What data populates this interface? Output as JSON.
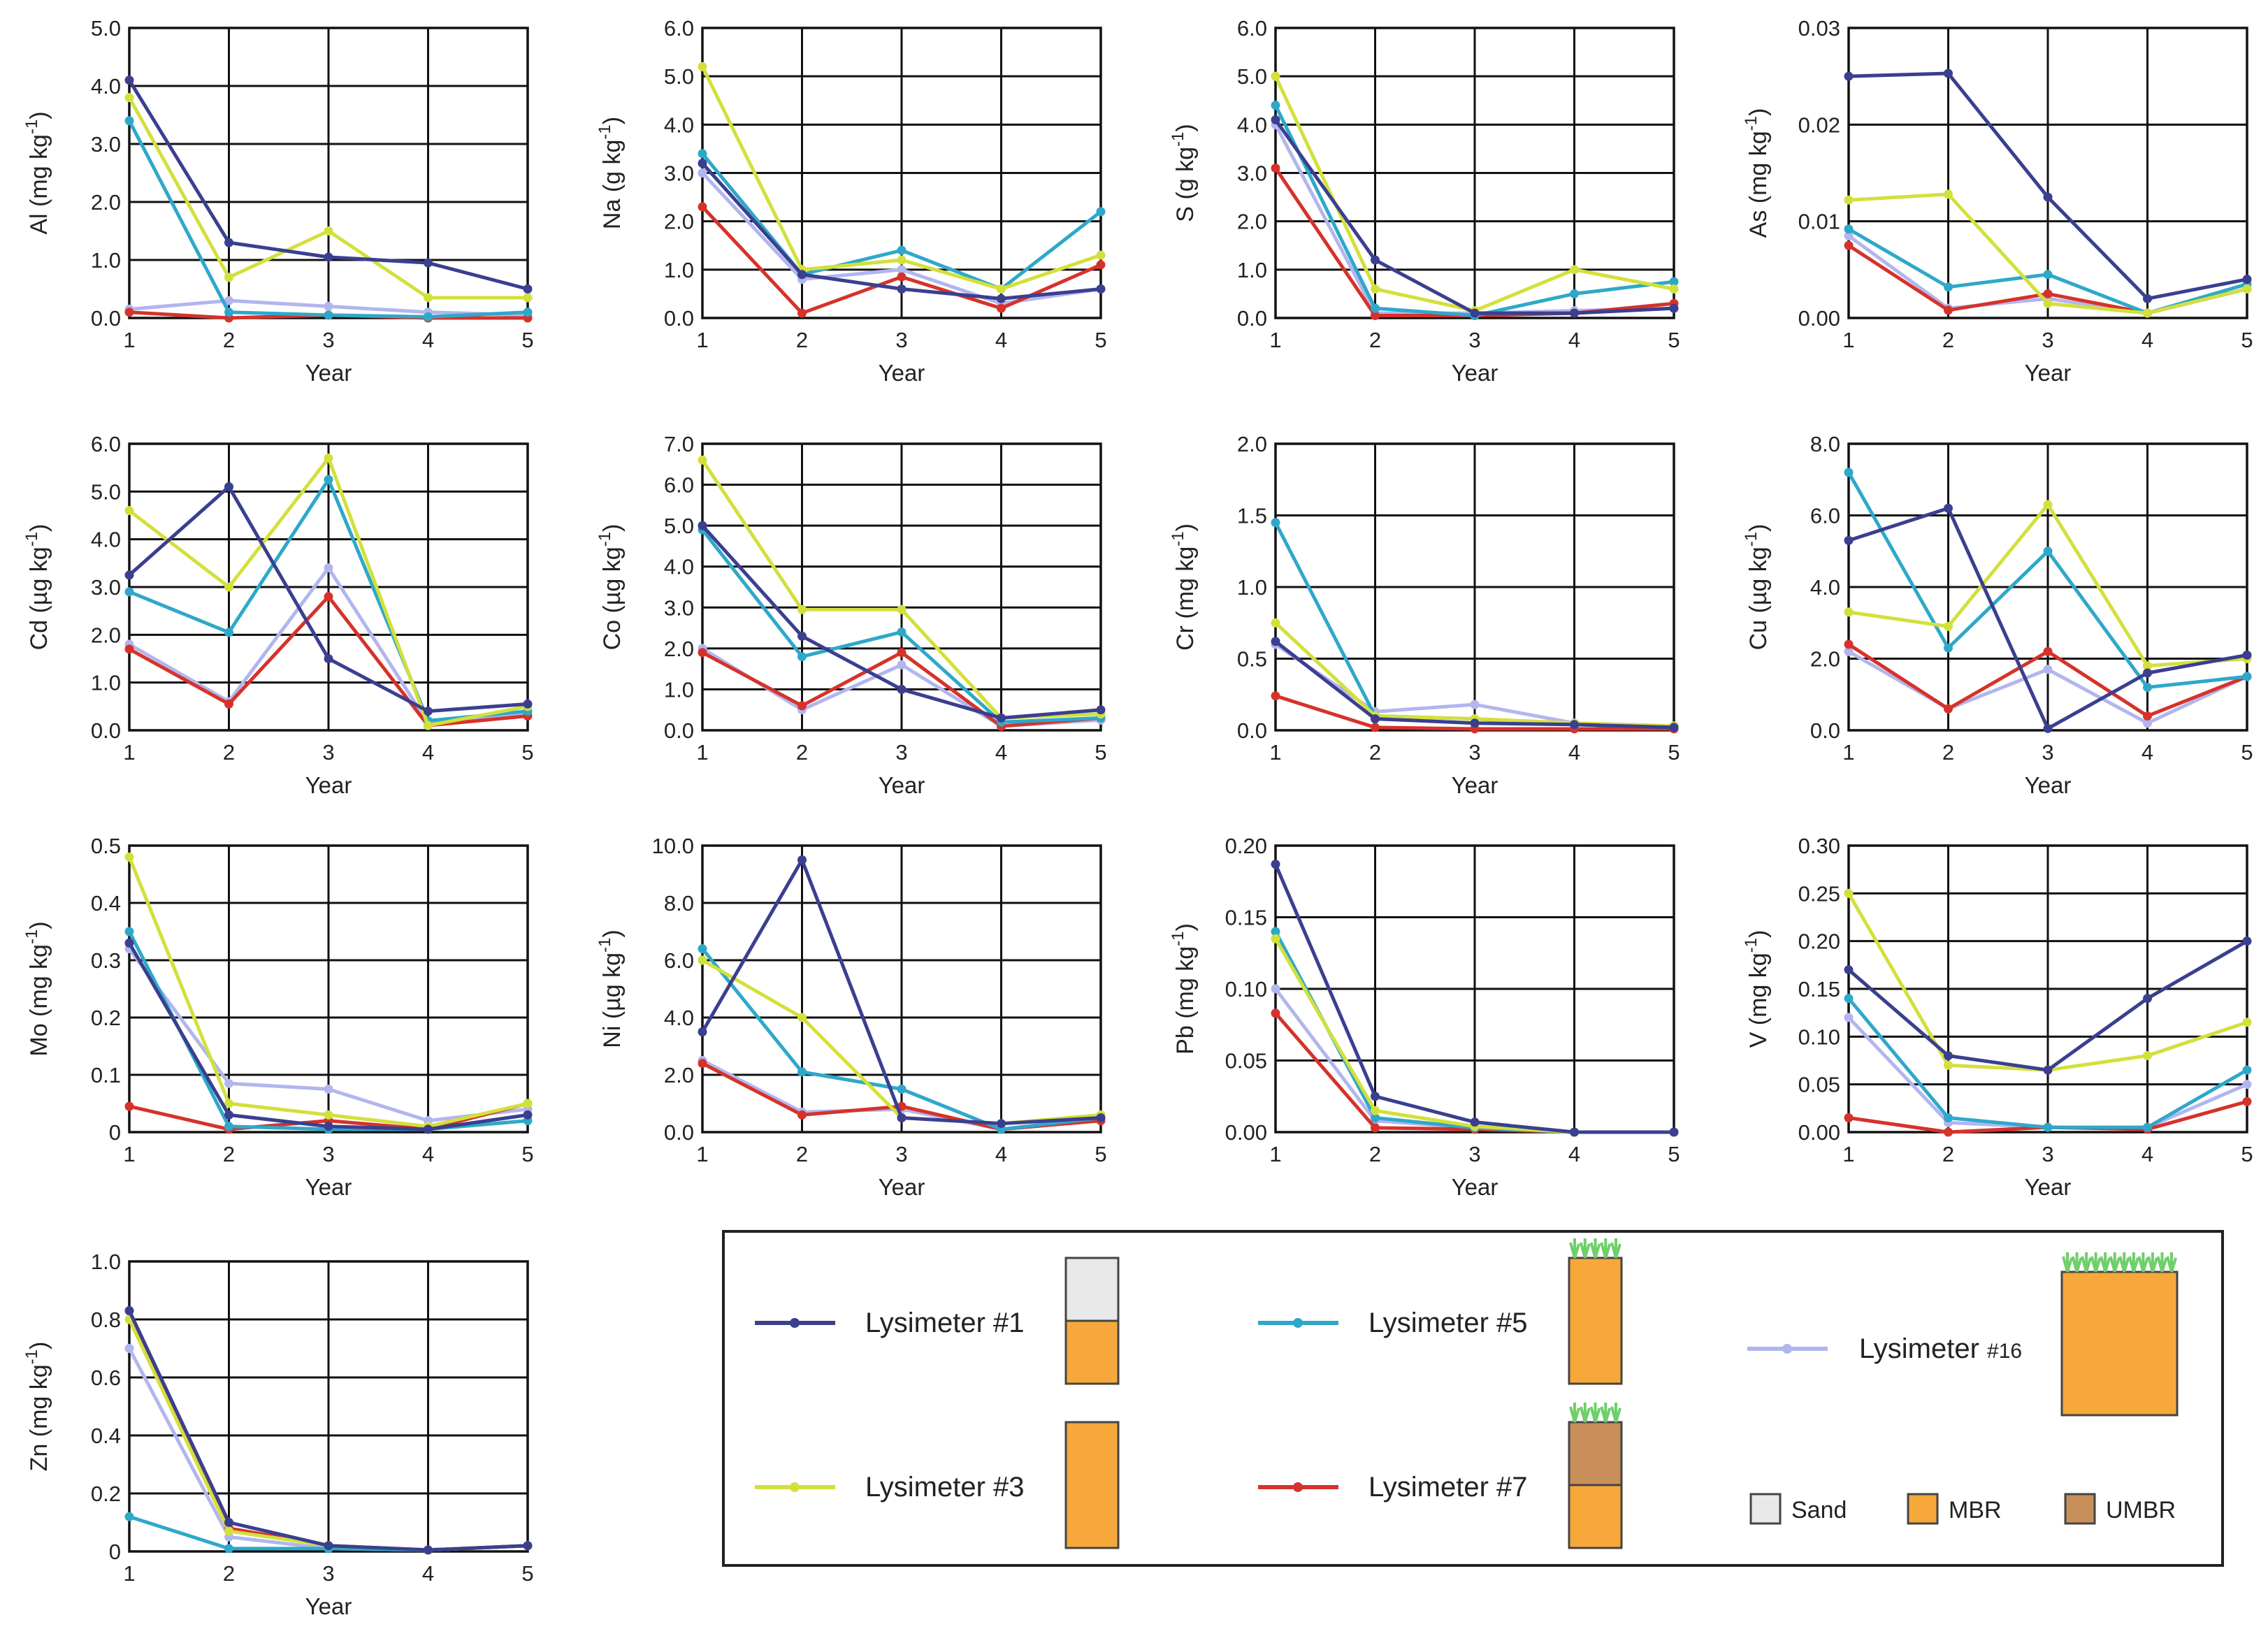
{
  "colors": {
    "lys1": "#3a3f8f",
    "lys3": "#d3e03c",
    "lys5": "#2ea8c9",
    "lys7": "#d6322b",
    "lys16": "#b2b6ee",
    "sand": "#e8e8e8",
    "mbr": "#f7a83a",
    "umbr": "#c98f5a",
    "plant": "#6fcf6a"
  },
  "series_order": [
    "lys1",
    "lys3",
    "lys5",
    "lys7",
    "lys16"
  ],
  "chart_data": [
    {
      "type": "line",
      "ylabel_main": "Al",
      "ylabel_unit": "(mg kg",
      "ylabel_sup": "-1",
      "ylabel_close": ")",
      "xlabel": "Year",
      "x": [
        1,
        2,
        3,
        4,
        5
      ],
      "ylim": [
        0,
        5
      ],
      "yticks": [
        "0.0",
        "1.0",
        "2.0",
        "3.0",
        "4.0",
        "5.0"
      ],
      "xticks": [
        "1",
        "2",
        "3",
        "4",
        "5"
      ],
      "series": [
        {
          "key": "lys1",
          "values": [
            4.1,
            1.3,
            1.05,
            0.95,
            0.5
          ]
        },
        {
          "key": "lys3",
          "values": [
            3.8,
            0.7,
            1.5,
            0.35,
            0.35
          ]
        },
        {
          "key": "lys5",
          "values": [
            3.4,
            0.1,
            0.05,
            0.02,
            0.1
          ]
        },
        {
          "key": "lys7",
          "values": [
            0.1,
            0.0,
            0.05,
            0.0,
            0.0
          ]
        },
        {
          "key": "lys16",
          "values": [
            0.15,
            0.3,
            0.2,
            0.1,
            0.05
          ]
        }
      ]
    },
    {
      "type": "line",
      "ylabel_main": "Na",
      "ylabel_unit": "(g kg",
      "ylabel_sup": "-1",
      "ylabel_close": ")",
      "xlabel": "Year",
      "x": [
        1,
        2,
        3,
        4,
        5
      ],
      "ylim": [
        0,
        6
      ],
      "yticks": [
        "0.0",
        "1.0",
        "2.0",
        "3.0",
        "4.0",
        "5.0",
        "6.0"
      ],
      "xticks": [
        "1",
        "2",
        "3",
        "4",
        "5"
      ],
      "series": [
        {
          "key": "lys1",
          "values": [
            3.2,
            0.9,
            0.6,
            0.4,
            0.6
          ]
        },
        {
          "key": "lys3",
          "values": [
            5.2,
            1.0,
            1.2,
            0.6,
            1.3
          ]
        },
        {
          "key": "lys5",
          "values": [
            3.4,
            0.9,
            1.4,
            0.6,
            2.2
          ]
        },
        {
          "key": "lys7",
          "values": [
            2.3,
            0.1,
            0.85,
            0.2,
            1.1
          ]
        },
        {
          "key": "lys16",
          "values": [
            3.0,
            0.8,
            1.0,
            0.3,
            0.6
          ]
        }
      ]
    },
    {
      "type": "line",
      "ylabel_main": "S",
      "ylabel_unit": "(g kg",
      "ylabel_sup": "-1",
      "ylabel_close": ")",
      "xlabel": "Year",
      "x": [
        1,
        2,
        3,
        4,
        5
      ],
      "ylim": [
        0,
        6
      ],
      "yticks": [
        "0.0",
        "1.0",
        "2.0",
        "3.0",
        "4.0",
        "5.0",
        "6.0"
      ],
      "xticks": [
        "1",
        "2",
        "3",
        "4",
        "5"
      ],
      "series": [
        {
          "key": "lys1",
          "values": [
            4.1,
            1.2,
            0.1,
            0.1,
            0.2
          ]
        },
        {
          "key": "lys3",
          "values": [
            5.0,
            0.6,
            0.15,
            1.0,
            0.6
          ]
        },
        {
          "key": "lys5",
          "values": [
            4.4,
            0.2,
            0.05,
            0.5,
            0.75
          ]
        },
        {
          "key": "lys7",
          "values": [
            3.1,
            0.05,
            0.05,
            0.1,
            0.3
          ]
        },
        {
          "key": "lys16",
          "values": [
            4.0,
            0.1,
            0.1,
            0.15,
            0.2
          ]
        }
      ]
    },
    {
      "type": "line",
      "ylabel_main": "As",
      "ylabel_unit": "(mg kg",
      "ylabel_sup": "-1",
      "ylabel_close": ")",
      "xlabel": "Year",
      "x": [
        1,
        2,
        3,
        4,
        5
      ],
      "ylim": [
        0,
        0.03
      ],
      "yticks": [
        "0.00",
        "0.01",
        "0.02",
        "0.03"
      ],
      "xticks": [
        "1",
        "2",
        "3",
        "4",
        "5"
      ],
      "series": [
        {
          "key": "lys1",
          "values": [
            0.025,
            0.0253,
            0.0125,
            0.002,
            0.004
          ]
        },
        {
          "key": "lys3",
          "values": [
            0.0122,
            0.0128,
            0.0015,
            0.0005,
            0.003
          ]
        },
        {
          "key": "lys5",
          "values": [
            0.0092,
            0.0032,
            0.0045,
            0.0005,
            0.0035
          ]
        },
        {
          "key": "lys7",
          "values": [
            0.0075,
            0.0008,
            0.0025,
            0.0005,
            0.003
          ]
        },
        {
          "key": "lys16",
          "values": [
            0.0085,
            0.001,
            0.002,
            0.0005,
            0.003
          ]
        }
      ]
    },
    {
      "type": "line",
      "ylabel_main": "Cd",
      "ylabel_unit": "(µg kg",
      "ylabel_sup": "-1",
      "ylabel_close": ")",
      "xlabel": "Year",
      "x": [
        1,
        2,
        3,
        4,
        5
      ],
      "ylim": [
        0,
        6
      ],
      "yticks": [
        "0.0",
        "1.0",
        "2.0",
        "3.0",
        "4.0",
        "5.0",
        "6.0"
      ],
      "xticks": [
        "1",
        "2",
        "3",
        "4",
        "5"
      ],
      "series": [
        {
          "key": "lys1",
          "values": [
            3.25,
            5.1,
            1.5,
            0.4,
            0.55
          ]
        },
        {
          "key": "lys3",
          "values": [
            4.6,
            3.0,
            5.7,
            0.1,
            0.5
          ]
        },
        {
          "key": "lys5",
          "values": [
            2.9,
            2.05,
            5.25,
            0.2,
            0.4
          ]
        },
        {
          "key": "lys7",
          "values": [
            1.7,
            0.55,
            2.8,
            0.1,
            0.3
          ]
        },
        {
          "key": "lys16",
          "values": [
            1.8,
            0.6,
            3.4,
            0.15,
            0.35
          ]
        }
      ]
    },
    {
      "type": "line",
      "ylabel_main": "Co",
      "ylabel_unit": "(µg kg",
      "ylabel_sup": "-1",
      "ylabel_close": ")",
      "xlabel": "Year",
      "x": [
        1,
        2,
        3,
        4,
        5
      ],
      "ylim": [
        0,
        7
      ],
      "yticks": [
        "0.0",
        "1.0",
        "2.0",
        "3.0",
        "4.0",
        "5.0",
        "6.0",
        "7.0"
      ],
      "xticks": [
        "1",
        "2",
        "3",
        "4",
        "5"
      ],
      "series": [
        {
          "key": "lys1",
          "values": [
            5.0,
            2.3,
            1.0,
            0.3,
            0.5
          ]
        },
        {
          "key": "lys3",
          "values": [
            6.6,
            2.95,
            2.95,
            0.3,
            0.4
          ]
        },
        {
          "key": "lys5",
          "values": [
            4.9,
            1.8,
            2.4,
            0.2,
            0.3
          ]
        },
        {
          "key": "lys7",
          "values": [
            1.9,
            0.6,
            1.9,
            0.1,
            0.3
          ]
        },
        {
          "key": "lys16",
          "values": [
            2.0,
            0.5,
            1.6,
            0.1,
            0.25
          ]
        }
      ]
    },
    {
      "type": "line",
      "ylabel_main": "Cr",
      "ylabel_unit": "(mg kg",
      "ylabel_sup": "-1",
      "ylabel_close": ")",
      "xlabel": "Year",
      "x": [
        1,
        2,
        3,
        4,
        5
      ],
      "ylim": [
        0,
        2
      ],
      "yticks": [
        "0.0",
        "0.5",
        "1.0",
        "1.5",
        "2.0"
      ],
      "xticks": [
        "1",
        "2",
        "3",
        "4",
        "5"
      ],
      "series": [
        {
          "key": "lys1",
          "values": [
            0.62,
            0.08,
            0.05,
            0.04,
            0.02
          ]
        },
        {
          "key": "lys3",
          "values": [
            0.75,
            0.1,
            0.08,
            0.05,
            0.03
          ]
        },
        {
          "key": "lys5",
          "values": [
            1.45,
            0.1,
            0.08,
            0.04,
            0.02
          ]
        },
        {
          "key": "lys7",
          "values": [
            0.24,
            0.02,
            0.01,
            0.01,
            0.01
          ]
        },
        {
          "key": "lys16",
          "values": [
            0.6,
            0.13,
            0.18,
            0.05,
            0.03
          ]
        }
      ]
    },
    {
      "type": "line",
      "ylabel_main": "Cu",
      "ylabel_unit": "(µg kg",
      "ylabel_sup": "-1",
      "ylabel_close": ")",
      "xlabel": "Year",
      "x": [
        1,
        2,
        3,
        4,
        5
      ],
      "ylim": [
        0,
        8
      ],
      "yticks": [
        "0.0",
        "2.0",
        "4.0",
        "6.0",
        "8.0"
      ],
      "xticks": [
        "1",
        "2",
        "3",
        "4",
        "5"
      ],
      "series": [
        {
          "key": "lys1",
          "values": [
            5.3,
            6.2,
            0.05,
            1.6,
            2.1
          ]
        },
        {
          "key": "lys3",
          "values": [
            3.3,
            2.9,
            6.3,
            1.8,
            2.0
          ]
        },
        {
          "key": "lys5",
          "values": [
            7.2,
            2.3,
            5.0,
            1.2,
            1.5
          ]
        },
        {
          "key": "lys7",
          "values": [
            2.4,
            0.6,
            2.2,
            0.4,
            1.5
          ]
        },
        {
          "key": "lys16",
          "values": [
            2.2,
            0.6,
            1.7,
            0.2,
            1.5
          ]
        }
      ]
    },
    {
      "type": "line",
      "ylabel_main": "Mo",
      "ylabel_unit": "(mg kg",
      "ylabel_sup": "-1",
      "ylabel_close": ")",
      "xlabel": "Year",
      "x": [
        1,
        2,
        3,
        4,
        5
      ],
      "ylim": [
        0,
        0.5
      ],
      "yticks": [
        "0",
        "0.1",
        "0.2",
        "0.3",
        "0.4",
        "0.5"
      ],
      "xticks": [
        "1",
        "2",
        "3",
        "4",
        "5"
      ],
      "series": [
        {
          "key": "lys1",
          "values": [
            0.33,
            0.03,
            0.01,
            0.005,
            0.03
          ]
        },
        {
          "key": "lys3",
          "values": [
            0.48,
            0.05,
            0.03,
            0.01,
            0.05
          ]
        },
        {
          "key": "lys5",
          "values": [
            0.35,
            0.01,
            0.005,
            0.005,
            0.02
          ]
        },
        {
          "key": "lys7",
          "values": [
            0.045,
            0.005,
            0.02,
            0.005,
            0.05
          ]
        },
        {
          "key": "lys16",
          "values": [
            0.32,
            0.085,
            0.075,
            0.02,
            0.04
          ]
        }
      ]
    },
    {
      "type": "line",
      "ylabel_main": "Ni",
      "ylabel_unit": "(µg kg",
      "ylabel_sup": "-1",
      "ylabel_close": ")",
      "xlabel": "Year",
      "x": [
        1,
        2,
        3,
        4,
        5
      ],
      "ylim": [
        0,
        10
      ],
      "yticks": [
        "0.0",
        "2.0",
        "4.0",
        "6.0",
        "8.0",
        "10.0"
      ],
      "xticks": [
        "1",
        "2",
        "3",
        "4",
        "5"
      ],
      "series": [
        {
          "key": "lys1",
          "values": [
            3.5,
            9.5,
            0.5,
            0.3,
            0.5
          ]
        },
        {
          "key": "lys3",
          "values": [
            6.0,
            4.0,
            0.5,
            0.3,
            0.6
          ]
        },
        {
          "key": "lys5",
          "values": [
            6.4,
            2.1,
            1.5,
            0.1,
            0.5
          ]
        },
        {
          "key": "lys7",
          "values": [
            2.4,
            0.6,
            0.9,
            0.1,
            0.4
          ]
        },
        {
          "key": "lys16",
          "values": [
            2.5,
            0.7,
            0.8,
            0.1,
            0.4
          ]
        }
      ]
    },
    {
      "type": "line",
      "ylabel_main": "Pb",
      "ylabel_unit": "(mg kg",
      "ylabel_sup": "-1",
      "ylabel_close": ")",
      "xlabel": "Year",
      "x": [
        1,
        2,
        3,
        4,
        5
      ],
      "ylim": [
        0,
        0.2
      ],
      "yticks": [
        "0.00",
        "0.05",
        "0.10",
        "0.15",
        "0.20"
      ],
      "xticks": [
        "1",
        "2",
        "3",
        "4",
        "5"
      ],
      "series": [
        {
          "key": "lys1",
          "values": [
            0.187,
            0.025,
            0.007,
            0.0,
            0.0
          ]
        },
        {
          "key": "lys3",
          "values": [
            0.135,
            0.015,
            0.004,
            0.0,
            0.0
          ]
        },
        {
          "key": "lys5",
          "values": [
            0.14,
            0.01,
            0.003,
            0.0,
            0.0
          ]
        },
        {
          "key": "lys7",
          "values": [
            0.083,
            0.003,
            0.002,
            0.0,
            0.0
          ]
        },
        {
          "key": "lys16",
          "values": [
            0.1,
            0.008,
            0.003,
            0.0,
            0.0
          ]
        }
      ]
    },
    {
      "type": "line",
      "ylabel_main": "V",
      "ylabel_unit": "(mg kg",
      "ylabel_sup": "-1",
      "ylabel_close": ")",
      "xlabel": "Year",
      "x": [
        1,
        2,
        3,
        4,
        5
      ],
      "ylim": [
        0,
        0.3
      ],
      "yticks": [
        "0.00",
        "0.05",
        "0.10",
        "0.15",
        "0.20",
        "0.25",
        "0.30"
      ],
      "xticks": [
        "1",
        "2",
        "3",
        "4",
        "5"
      ],
      "series": [
        {
          "key": "lys1",
          "values": [
            0.17,
            0.08,
            0.065,
            0.14,
            0.2
          ]
        },
        {
          "key": "lys3",
          "values": [
            0.25,
            0.07,
            0.065,
            0.08,
            0.115
          ]
        },
        {
          "key": "lys5",
          "values": [
            0.14,
            0.015,
            0.005,
            0.005,
            0.065
          ]
        },
        {
          "key": "lys7",
          "values": [
            0.015,
            0.0,
            0.005,
            0.003,
            0.032
          ]
        },
        {
          "key": "lys16",
          "values": [
            0.12,
            0.01,
            0.005,
            0.005,
            0.05
          ]
        }
      ]
    },
    {
      "type": "line",
      "ylabel_main": "Zn",
      "ylabel_unit": "(mg kg",
      "ylabel_sup": "-1",
      "ylabel_close": ")",
      "xlabel": "Year",
      "x": [
        1,
        2,
        3,
        4,
        5
      ],
      "ylim": [
        0,
        1
      ],
      "yticks": [
        "0",
        "0.2",
        "0.4",
        "0.6",
        "0.8",
        "1.0"
      ],
      "xticks": [
        "1",
        "2",
        "3",
        "4",
        "5"
      ],
      "series": [
        {
          "key": "lys1",
          "values": [
            0.83,
            0.1,
            0.02,
            0.005,
            0.02
          ]
        },
        {
          "key": "lys3",
          "values": [
            0.8,
            0.07,
            0.02,
            0.005,
            0.02
          ]
        },
        {
          "key": "lys5",
          "values": [
            0.12,
            0.01,
            0.01,
            0.005,
            0.02
          ]
        },
        {
          "key": "lys7",
          "values": [
            0.83,
            0.08,
            0.02,
            0.005,
            0.02
          ]
        },
        {
          "key": "lys16",
          "values": [
            0.7,
            0.05,
            0.01,
            0.005,
            0.02
          ]
        }
      ]
    }
  ],
  "legend": {
    "placement": "bottom-right",
    "entries": [
      {
        "key": "lys1",
        "label": "Lysimeter #1",
        "profile": [
          "sand",
          "mbr"
        ],
        "plants": false
      },
      {
        "key": "lys3",
        "label": "Lysimeter #3",
        "profile": [
          "mbr"
        ],
        "plants": false
      },
      {
        "key": "lys5",
        "label": "Lysimeter #5",
        "profile": [
          "mbr"
        ],
        "plants": true
      },
      {
        "key": "lys7",
        "label": "Lysimeter #7",
        "profile": [
          "umbr",
          "mbr"
        ],
        "plants": true
      },
      {
        "key": "lys16",
        "label": "Lysimeter ",
        "label_small": "#16",
        "profile": [
          "mbr"
        ],
        "plants": true
      }
    ],
    "materials": [
      {
        "key": "sand",
        "label": "Sand"
      },
      {
        "key": "mbr",
        "label": "MBR"
      },
      {
        "key": "umbr",
        "label": "UMBR"
      }
    ]
  }
}
